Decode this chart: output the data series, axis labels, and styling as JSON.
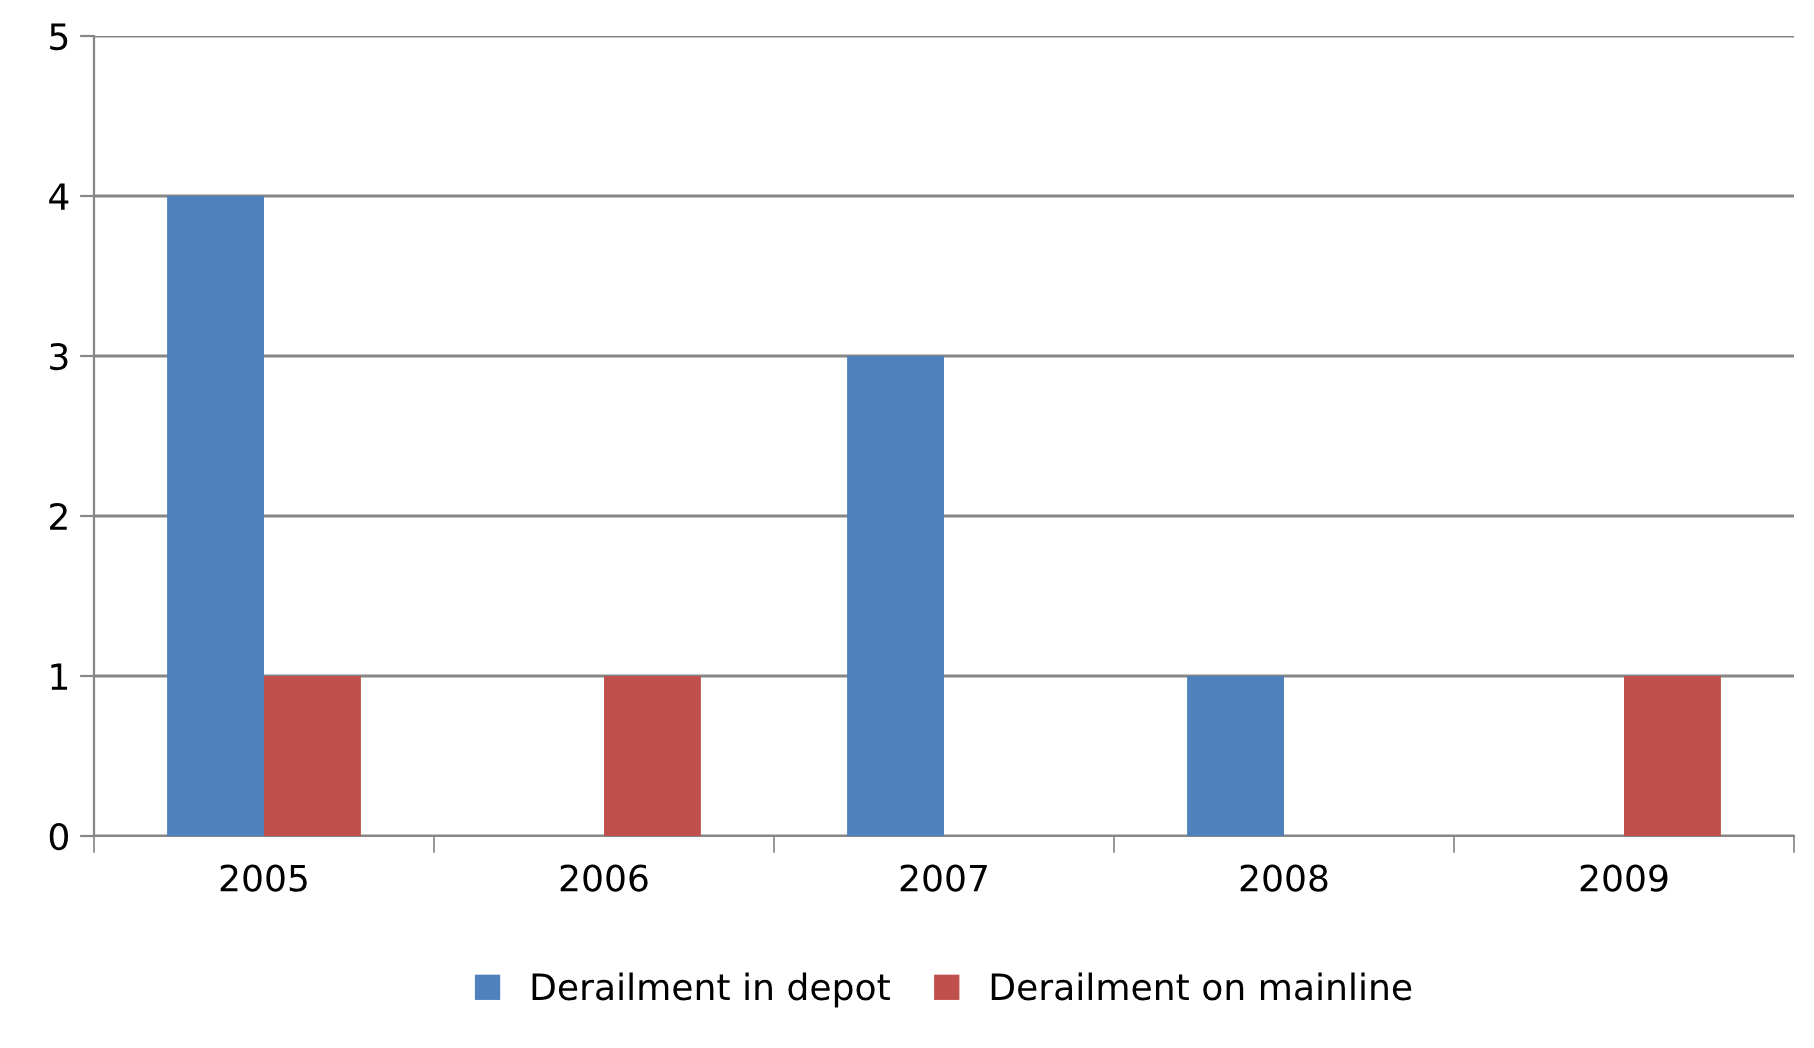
{
  "chart_data": {
    "type": "bar",
    "categories": [
      "2005",
      "2006",
      "2007",
      "2008",
      "2009"
    ],
    "series": [
      {
        "name": "Derailment in depot",
        "color": "#4f81bd",
        "values": [
          4,
          0,
          3,
          1,
          0
        ]
      },
      {
        "name": "Derailment on mainline",
        "color": "#c0504d",
        "values": [
          1,
          1,
          0,
          0,
          1
        ]
      }
    ],
    "ylim": [
      0,
      5
    ],
    "yticks": [
      0,
      1,
      2,
      3,
      4,
      5
    ],
    "grid": "y",
    "legend": "bottom"
  }
}
